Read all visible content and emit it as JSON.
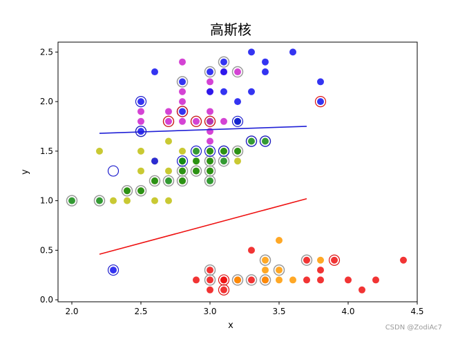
{
  "chart_data": {
    "type": "scatter",
    "title": "高斯核",
    "xlabel": "x",
    "ylabel": "y",
    "xlim": [
      1.9,
      4.5
    ],
    "ylim": [
      -0.02,
      2.6
    ],
    "xticks": [
      "2.0",
      "2.5",
      "3.0",
      "3.5",
      "4.0",
      "4.5"
    ],
    "yticks": [
      "0.0",
      "0.5",
      "1.0",
      "1.5",
      "2.0",
      "2.5"
    ],
    "xtick_values": [
      2.0,
      2.5,
      3.0,
      3.5,
      4.0,
      4.5
    ],
    "ytick_values": [
      0.0,
      0.5,
      1.0,
      1.5,
      2.0,
      2.5
    ],
    "grid": false,
    "series": [
      {
        "color": "#ee1111",
        "alpha": 0.85,
        "points": [
          [
            3.0,
            0.1
          ],
          [
            3.1,
            0.1
          ],
          [
            3.0,
            0.2
          ],
          [
            3.1,
            0.2
          ],
          [
            2.9,
            0.2
          ],
          [
            3.0,
            0.3
          ],
          [
            3.3,
            0.5
          ],
          [
            3.7,
            0.2
          ],
          [
            3.8,
            0.2
          ],
          [
            3.8,
            0.3
          ],
          [
            3.7,
            0.4
          ],
          [
            3.9,
            0.4
          ],
          [
            4.0,
            0.2
          ],
          [
            4.1,
            0.1
          ],
          [
            4.2,
            0.2
          ],
          [
            4.4,
            0.4
          ],
          [
            3.4,
            0.2
          ],
          [
            3.2,
            0.2
          ],
          [
            3.1,
            0.2
          ],
          [
            3.3,
            0.2
          ]
        ]
      },
      {
        "color": "#ff9900",
        "alpha": 0.85,
        "points": [
          [
            3.2,
            0.2
          ],
          [
            3.4,
            0.2
          ],
          [
            3.5,
            0.2
          ],
          [
            3.6,
            0.2
          ],
          [
            3.4,
            0.3
          ],
          [
            3.5,
            0.3
          ],
          [
            3.5,
            0.6
          ],
          [
            3.4,
            0.4
          ],
          [
            3.8,
            0.4
          ]
        ]
      },
      {
        "color": "#bbbb00",
        "alpha": 0.8,
        "points": [
          [
            2.2,
            1.5
          ],
          [
            2.3,
            1.0
          ],
          [
            2.4,
            1.0
          ],
          [
            2.5,
            1.1
          ],
          [
            2.5,
            1.3
          ],
          [
            2.5,
            1.5
          ],
          [
            2.6,
            1.0
          ],
          [
            2.6,
            1.2
          ],
          [
            2.7,
            1.0
          ],
          [
            2.7,
            1.3
          ],
          [
            2.7,
            1.6
          ],
          [
            2.8,
            1.3
          ],
          [
            2.8,
            1.5
          ],
          [
            2.9,
            1.3
          ],
          [
            2.9,
            1.4
          ],
          [
            3.0,
            1.3
          ],
          [
            3.0,
            1.4
          ],
          [
            3.1,
            1.5
          ],
          [
            3.2,
            1.4
          ],
          [
            3.2,
            1.5
          ],
          [
            2.4,
            1.1
          ],
          [
            2.6,
            1.4
          ],
          [
            2.8,
            1.2
          ],
          [
            3.0,
            1.5
          ]
        ]
      },
      {
        "color": "#118811",
        "alpha": 0.85,
        "points": [
          [
            2.0,
            1.0
          ],
          [
            2.2,
            1.0
          ],
          [
            2.4,
            1.1
          ],
          [
            2.6,
            1.2
          ],
          [
            2.7,
            1.2
          ],
          [
            2.8,
            1.2
          ],
          [
            2.8,
            1.3
          ],
          [
            2.8,
            1.4
          ],
          [
            2.9,
            1.3
          ],
          [
            2.9,
            1.4
          ],
          [
            3.0,
            1.2
          ],
          [
            3.0,
            1.3
          ],
          [
            3.0,
            1.4
          ],
          [
            3.1,
            1.4
          ],
          [
            3.1,
            1.5
          ],
          [
            3.2,
            1.5
          ],
          [
            3.2,
            1.8
          ],
          [
            3.3,
            1.6
          ],
          [
            3.4,
            1.6
          ],
          [
            2.9,
            1.5
          ],
          [
            3.0,
            1.5
          ],
          [
            2.8,
            1.4
          ],
          [
            2.5,
            1.1
          ],
          [
            3.0,
            1.8
          ]
        ]
      },
      {
        "color": "#cc22cc",
        "alpha": 0.85,
        "points": [
          [
            2.5,
            1.8
          ],
          [
            2.5,
            1.9
          ],
          [
            2.7,
            1.9
          ],
          [
            2.8,
            1.8
          ],
          [
            2.8,
            2.0
          ],
          [
            2.8,
            2.1
          ],
          [
            2.8,
            2.4
          ],
          [
            2.9,
            1.8
          ],
          [
            3.0,
            1.6
          ],
          [
            3.0,
            1.7
          ],
          [
            3.0,
            1.8
          ],
          [
            3.0,
            2.1
          ],
          [
            3.0,
            2.2
          ],
          [
            3.1,
            1.8
          ],
          [
            3.1,
            2.3
          ],
          [
            3.2,
            2.3
          ],
          [
            3.0,
            1.9
          ],
          [
            2.7,
            1.8
          ]
        ]
      },
      {
        "color": "#1111ee",
        "alpha": 0.85,
        "points": [
          [
            2.5,
            2.0
          ],
          [
            2.6,
            2.3
          ],
          [
            2.6,
            1.4
          ],
          [
            2.8,
            2.2
          ],
          [
            2.8,
            1.9
          ],
          [
            3.0,
            2.3
          ],
          [
            3.0,
            2.1
          ],
          [
            3.1,
            2.3
          ],
          [
            3.1,
            2.4
          ],
          [
            3.1,
            2.1
          ],
          [
            3.2,
            2.0
          ],
          [
            3.3,
            2.1
          ],
          [
            3.3,
            2.5
          ],
          [
            3.4,
            2.4
          ],
          [
            3.4,
            2.3
          ],
          [
            3.6,
            2.5
          ],
          [
            3.8,
            2.2
          ],
          [
            3.8,
            2.0
          ],
          [
            2.5,
            1.7
          ],
          [
            3.2,
            1.8
          ],
          [
            2.3,
            0.3
          ]
        ]
      }
    ],
    "highlights_gray": [
      [
        2.0,
        1.0
      ],
      [
        2.2,
        1.0
      ],
      [
        2.4,
        1.1
      ],
      [
        2.5,
        1.1
      ],
      [
        2.6,
        1.2
      ],
      [
        2.7,
        1.2
      ],
      [
        2.8,
        1.2
      ],
      [
        2.8,
        1.3
      ],
      [
        2.8,
        2.2
      ],
      [
        2.9,
        1.3
      ],
      [
        3.0,
        1.2
      ],
      [
        3.0,
        1.3
      ],
      [
        3.0,
        1.4
      ],
      [
        3.0,
        2.3
      ],
      [
        3.1,
        1.4
      ],
      [
        3.1,
        1.5
      ],
      [
        3.1,
        2.4
      ],
      [
        3.2,
        2.3
      ],
      [
        3.2,
        1.5
      ],
      [
        3.0,
        0.3
      ],
      [
        3.0,
        0.2
      ],
      [
        3.2,
        0.2
      ],
      [
        3.3,
        0.2
      ],
      [
        3.4,
        0.2
      ],
      [
        3.4,
        0.4
      ],
      [
        3.5,
        0.3
      ],
      [
        3.7,
        0.4
      ],
      [
        3.0,
        1.8
      ],
      [
        2.9,
        1.8
      ],
      [
        2.5,
        1.7
      ],
      [
        2.8,
        1.9
      ],
      [
        2.7,
        1.8
      ],
      [
        3.3,
        1.6
      ],
      [
        3.4,
        1.6
      ]
    ],
    "highlights_blue": [
      [
        2.3,
        1.3
      ],
      [
        2.3,
        0.3
      ],
      [
        2.5,
        2.0
      ],
      [
        2.5,
        1.7
      ],
      [
        2.8,
        1.9
      ],
      [
        2.8,
        1.4
      ],
      [
        2.9,
        1.5
      ],
      [
        3.0,
        1.5
      ],
      [
        3.1,
        1.5
      ],
      [
        3.2,
        1.8
      ],
      [
        3.3,
        1.6
      ],
      [
        3.4,
        1.6
      ]
    ],
    "highlights_red": [
      [
        2.7,
        1.8
      ],
      [
        2.8,
        1.9
      ],
      [
        2.9,
        1.8
      ],
      [
        3.0,
        1.8
      ],
      [
        3.8,
        2.0
      ],
      [
        3.9,
        0.4
      ],
      [
        3.1,
        0.1
      ],
      [
        3.1,
        0.2
      ]
    ],
    "lines": [
      {
        "color": "#1f1fd6",
        "x": [
          2.2,
          3.7
        ],
        "y": [
          1.68,
          1.75
        ]
      },
      {
        "color": "#ee1111",
        "x": [
          2.2,
          3.7
        ],
        "y": [
          0.46,
          1.02
        ]
      }
    ]
  },
  "watermark": "CSDN @ZodiAc7"
}
